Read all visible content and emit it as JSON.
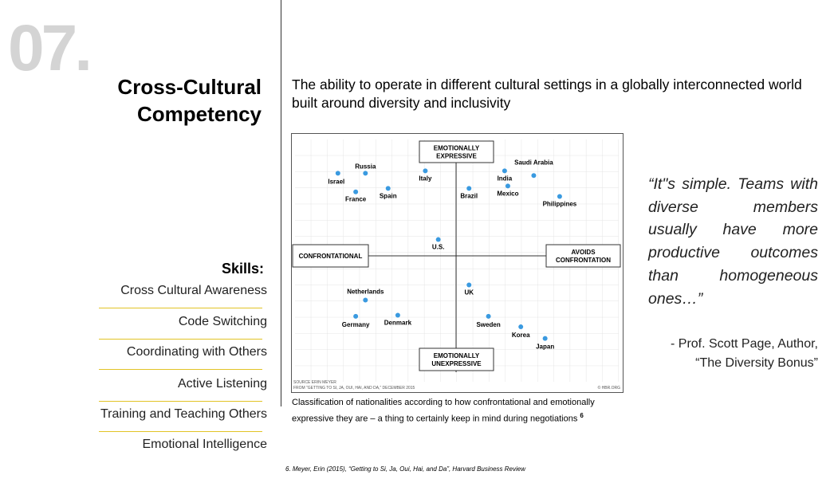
{
  "header": {
    "number": "07.",
    "title_lines": [
      "Cross-Cultural",
      "Competency"
    ]
  },
  "description": "The ability to operate in different cultural settings in a globally interconnected world built around diversity and inclusivity",
  "skills": {
    "heading": "Skills:",
    "items": [
      "Cross Cultural Awareness",
      "Code Switching",
      "Coordinating with Others",
      "Active Listening",
      "Training and Teaching Others",
      "Emotional Intelligence"
    ]
  },
  "chart_data": {
    "type": "scatter",
    "top_label": [
      "EMOTIONALLY",
      "EXPRESSIVE"
    ],
    "bottom_label": [
      "EMOTIONALLY",
      "UNEXPRESSIVE"
    ],
    "left_label": [
      "CONFRONTATIONAL"
    ],
    "right_label": [
      "AVOIDS",
      "CONFRONTATION"
    ],
    "point_labels": [
      "Israel",
      "Russia",
      "France",
      "Spain",
      "Italy",
      "Brazil",
      "India",
      "Saudi Arabia",
      "Mexico",
      "Philippines",
      "U.S.",
      "UK",
      "Netherlands",
      "Germany",
      "Denmark",
      "Sweden",
      "Korea",
      "Japan"
    ],
    "x": [
      -7.3,
      -5.6,
      -6.2,
      -4.2,
      -1.9,
      0.8,
      3.0,
      4.8,
      3.2,
      6.4,
      -1.1,
      0.8,
      -5.6,
      -6.2,
      -3.6,
      2.0,
      4.0,
      5.5
    ],
    "values": [
      7.1,
      7.1,
      5.5,
      5.8,
      7.3,
      5.8,
      7.3,
      6.9,
      6.0,
      5.1,
      1.4,
      -2.5,
      -3.8,
      -5.2,
      -5.1,
      -5.2,
      -6.1,
      -7.1
    ],
    "xlim": [
      -10,
      10
    ],
    "ylim": [
      -10,
      10
    ],
    "color": "#3a9ae0",
    "source": [
      "SOURCE ERIN MEYER",
      "FROM “GETTING TO SI, JA, OUI, HAI, AND DA,” DECEMBER 2015"
    ],
    "credit": "© HBR.ORG"
  },
  "caption": {
    "text": "Classification of nationalities according to how confrontational and emotionally expressive they are – a thing to certainly keep in mind during negotiations",
    "ref": "6"
  },
  "quote": {
    "text": "“It\"s simple. Teams with diverse members usually have more productive outcomes than homogeneous ones…”",
    "attribution": [
      "- Prof. Scott Page, Author,",
      "“The Diversity Bonus”"
    ]
  },
  "footnote": "6. Meyer, Erin (2015), “Getting to Si, Ja, Oui, Hai, and Da”, Harvard Business Review"
}
